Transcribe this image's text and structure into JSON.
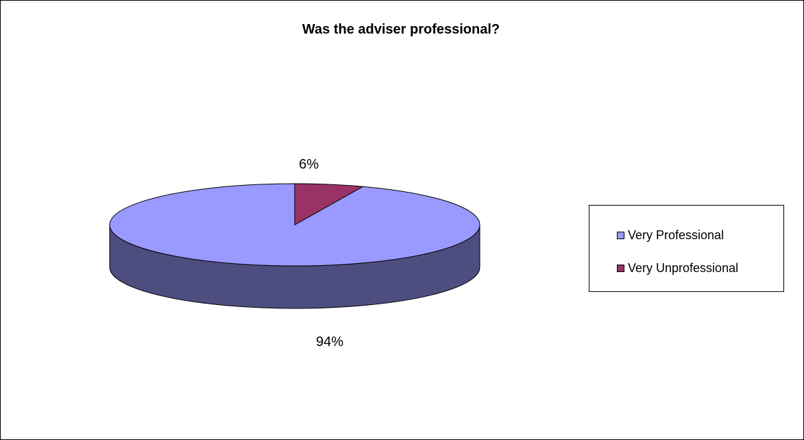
{
  "chart_data": {
    "type": "pie",
    "title": "Was the adviser professional?",
    "categories": [
      "Very Professional",
      "Very Unprofessional"
    ],
    "values": [
      94,
      6
    ],
    "data_labels": [
      "94%",
      "6%"
    ],
    "colors": [
      "#9999FF",
      "#993366"
    ],
    "side_colors": [
      "#4D4D80",
      "#4D1A33"
    ],
    "style": "3d",
    "legend_position": "right"
  }
}
